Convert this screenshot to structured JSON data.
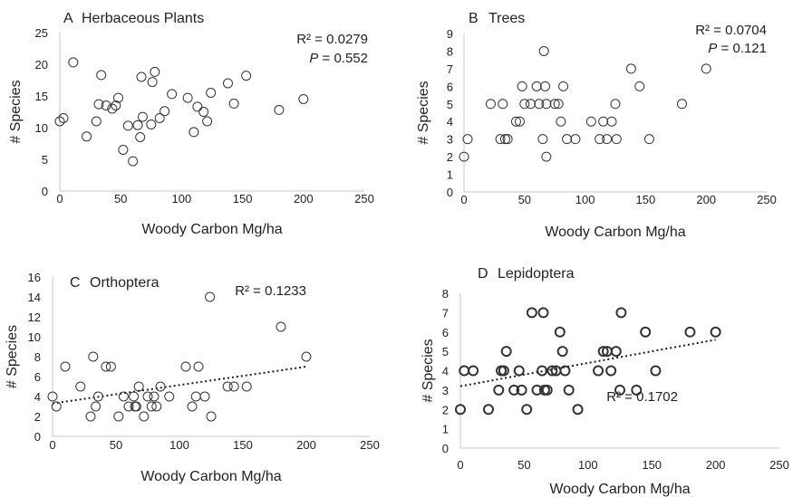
{
  "chart_data": [
    {
      "type": "scatter",
      "panel_letter": "A",
      "title": "Herbaceous Plants",
      "xlabel": "Woody Carbon Mg/ha",
      "ylabel": "# Species",
      "xlim": [
        0,
        250
      ],
      "ylim": [
        0,
        25
      ],
      "xticks": [
        0,
        50,
        100,
        150,
        200,
        250
      ],
      "yticks": [
        0,
        5,
        10,
        15,
        20,
        25
      ],
      "grid": false,
      "trendline": false,
      "stats": {
        "r2": "R² = 0.0279",
        "p_prefix": "P",
        "p_value": " = 0.552"
      },
      "series": [
        {
          "x": [
            0,
            3,
            11,
            22,
            30,
            32,
            34,
            38,
            43,
            46,
            48,
            52,
            56,
            60,
            64,
            66,
            67,
            68,
            75,
            76,
            78,
            82,
            86,
            92,
            105,
            110,
            113,
            118,
            121,
            124,
            138,
            143,
            153,
            180,
            200
          ],
          "y": [
            11,
            11.5,
            20.3,
            8.6,
            11,
            13.7,
            18.3,
            13.5,
            13,
            13.5,
            14.7,
            6.5,
            10.3,
            4.7,
            10.4,
            8.5,
            18,
            11.7,
            10.5,
            17.2,
            18.8,
            11.5,
            12.6,
            15.3,
            14.7,
            9.3,
            13.3,
            12.5,
            11,
            15.5,
            17,
            13.8,
            18.2,
            12.8,
            14.5
          ]
        }
      ]
    },
    {
      "type": "scatter",
      "panel_letter": "B",
      "title": "Trees",
      "xlabel": "Woody Carbon Mg/ha",
      "ylabel": "# Species",
      "xlim": [
        0,
        250
      ],
      "ylim": [
        0,
        9
      ],
      "xticks": [
        0,
        50,
        100,
        150,
        200,
        250
      ],
      "yticks": [
        0,
        1,
        2,
        3,
        4,
        5,
        6,
        7,
        8,
        9
      ],
      "grid": false,
      "trendline": false,
      "stats": {
        "r2": "R² = 0.0704",
        "p_prefix": "P",
        "p_value": " = 0.121"
      },
      "series": [
        {
          "x": [
            0,
            3,
            22,
            30,
            32,
            34,
            36,
            43,
            46,
            48,
            50,
            55,
            60,
            62,
            65,
            66,
            67,
            68,
            68,
            75,
            78,
            80,
            82,
            85,
            92,
            105,
            112,
            115,
            118,
            122,
            125,
            126,
            138,
            145,
            153,
            180,
            200
          ],
          "y": [
            2,
            3,
            5,
            3,
            5,
            3,
            3,
            4,
            4,
            6,
            5,
            5,
            6,
            5,
            3,
            8,
            6,
            5,
            2,
            5,
            5,
            4,
            6,
            3,
            3,
            4,
            3,
            4,
            3,
            4,
            5,
            3,
            7,
            6,
            3,
            5,
            7
          ]
        }
      ]
    },
    {
      "type": "scatter",
      "panel_letter": "C",
      "title": "Orthoptera",
      "xlabel": "Woody Carbon Mg/ha",
      "ylabel": "# Species",
      "xlim": [
        0,
        250
      ],
      "ylim": [
        0,
        16
      ],
      "xticks": [
        0,
        50,
        100,
        150,
        200,
        250
      ],
      "yticks": [
        0,
        2,
        4,
        6,
        8,
        10,
        12,
        14,
        16
      ],
      "grid": false,
      "trendline": {
        "x": [
          0,
          200
        ],
        "y": [
          3.3,
          7
        ]
      },
      "stats": {
        "r2": "R² = 0.1233"
      },
      "series": [
        {
          "x": [
            0,
            3,
            10,
            22,
            30,
            32,
            34,
            36,
            42,
            46,
            52,
            56,
            60,
            64,
            65,
            66,
            68,
            72,
            75,
            78,
            80,
            82,
            85,
            92,
            105,
            110,
            113,
            115,
            120,
            124,
            125,
            138,
            143,
            153,
            180,
            200
          ],
          "y": [
            4,
            3,
            7,
            5,
            2,
            8,
            3,
            4,
            7,
            7,
            2,
            4,
            3,
            4,
            3,
            3,
            5,
            2,
            4,
            3,
            4,
            3,
            5,
            4,
            7,
            3,
            4,
            7,
            4,
            14,
            2,
            5,
            5,
            5,
            11,
            8
          ]
        }
      ]
    },
    {
      "type": "scatter",
      "panel_letter": "D",
      "title": "Lepidoptera",
      "xlabel": "Woody Carbon Mg/ha",
      "ylabel": "# Species",
      "xlim": [
        0,
        250
      ],
      "ylim": [
        0,
        8
      ],
      "xticks": [
        0,
        50,
        100,
        150,
        200,
        250
      ],
      "yticks": [
        0,
        1,
        2,
        3,
        4,
        5,
        6,
        7,
        8
      ],
      "grid": false,
      "trendline": {
        "x": [
          0,
          200
        ],
        "y": [
          3.2,
          5.6
        ]
      },
      "stats": {
        "r2": "R² = 0.1702"
      },
      "series": [
        {
          "x": [
            0,
            3,
            10,
            22,
            30,
            32,
            34,
            36,
            42,
            46,
            48,
            52,
            56,
            60,
            64,
            65,
            66,
            68,
            72,
            75,
            78,
            80,
            82,
            85,
            92,
            108,
            112,
            115,
            118,
            122,
            125,
            126,
            138,
            145,
            153,
            180,
            200
          ],
          "y": [
            2,
            4,
            4,
            2,
            3,
            4,
            4,
            5,
            3,
            4,
            3,
            2,
            7,
            3,
            4,
            7,
            3,
            3,
            4,
            4,
            6,
            5,
            4,
            3,
            2,
            4,
            5,
            5,
            4,
            5,
            3,
            7,
            3,
            6,
            4,
            6,
            6
          ]
        }
      ]
    }
  ]
}
